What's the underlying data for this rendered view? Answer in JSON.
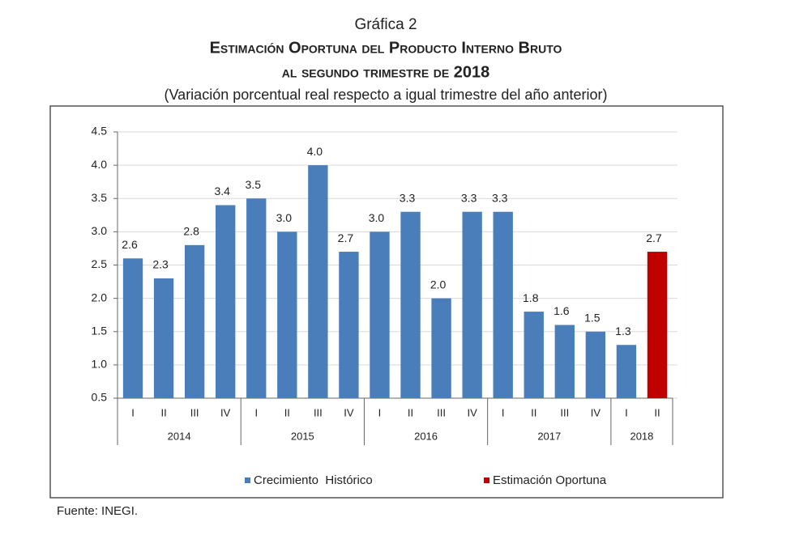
{
  "chart_data": {
    "type": "bar",
    "label": "Gráfica 2",
    "title": [
      "Estimación Oportuna del Producto Interno Bruto",
      "al segundo trimestre de 2018"
    ],
    "subtitle": "(Variación porcentual real respecto a igual trimestre del año anterior)",
    "groups": [
      {
        "name": "2014",
        "quarters": [
          "I",
          "II",
          "III",
          "IV"
        ]
      },
      {
        "name": "2015",
        "quarters": [
          "I",
          "II",
          "III",
          "IV"
        ]
      },
      {
        "name": "2016",
        "quarters": [
          "I",
          "II",
          "III",
          "IV"
        ]
      },
      {
        "name": "2017",
        "quarters": [
          "I",
          "II",
          "III",
          "IV"
        ]
      },
      {
        "name": "2018",
        "quarters": [
          "I",
          "II"
        ]
      }
    ],
    "series": [
      {
        "name": "Crecimiento  Histórico",
        "color": "#4a7ebb",
        "values": [
          2.6,
          2.3,
          2.8,
          3.4,
          3.5,
          3.0,
          4.0,
          2.7,
          3.0,
          3.3,
          2.0,
          3.3,
          3.3,
          1.8,
          1.6,
          1.5,
          1.3,
          null
        ],
        "value_labels": [
          "2.6",
          "2.3",
          "2.8",
          "3.4",
          "3.5",
          "3.0",
          "4.0",
          "2.7",
          "3.0",
          "3.3",
          "2.0",
          "3.3",
          "3.3",
          "1.8",
          "1.6",
          "1.5",
          "1.3",
          null
        ]
      },
      {
        "name": "Estimación Oportuna",
        "color": "#c00000",
        "values": [
          null,
          null,
          null,
          null,
          null,
          null,
          null,
          null,
          null,
          null,
          null,
          null,
          null,
          null,
          null,
          null,
          null,
          2.7
        ],
        "value_labels": [
          null,
          null,
          null,
          null,
          null,
          null,
          null,
          null,
          null,
          null,
          null,
          null,
          null,
          null,
          null,
          null,
          null,
          "2.7"
        ]
      }
    ],
    "ylim": [
      0.5,
      4.5
    ],
    "yticks": [
      {
        "value": 0.5,
        "label": "0.5"
      },
      {
        "value": 1,
        "label": "1.0"
      },
      {
        "value": 1.5,
        "label": "1.5"
      },
      {
        "value": 2,
        "label": "2.0"
      },
      {
        "value": 2.5,
        "label": "2.5"
      },
      {
        "value": 3,
        "label": "3.0"
      },
      {
        "value": 3.5,
        "label": "3.5"
      },
      {
        "value": 4,
        "label": "4.0"
      },
      {
        "value": 4.5,
        "label": "4.5"
      }
    ],
    "grid": true,
    "source": "Fuente: INEGI."
  }
}
